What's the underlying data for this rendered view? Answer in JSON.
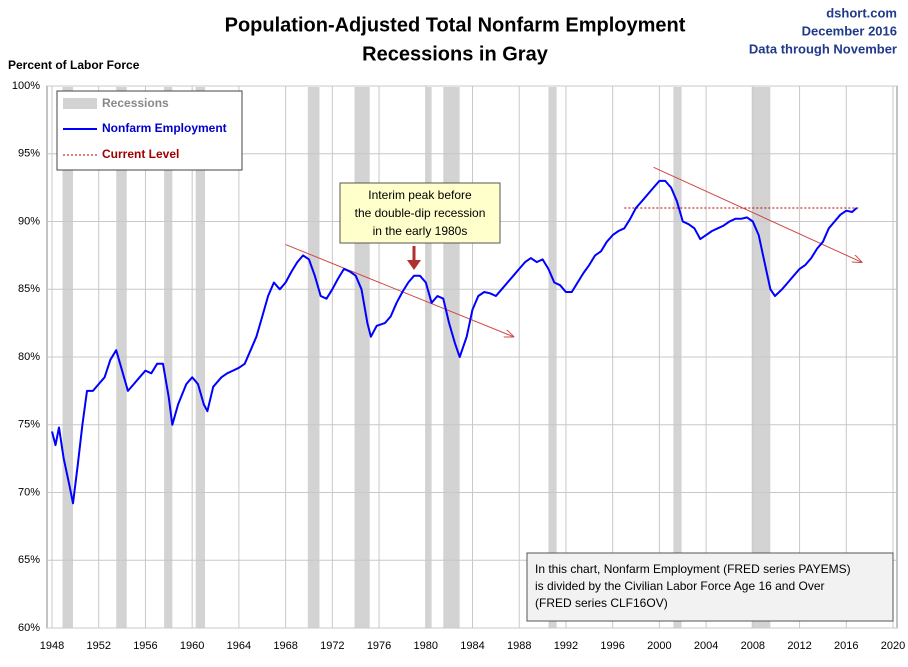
{
  "chart_data": {
    "type": "line",
    "title": [
      "Population-Adjusted Total Nonfarm Employment",
      "Recessions in Gray"
    ],
    "source": [
      "dshort.com",
      "December 2016",
      "Data through November"
    ],
    "y_label": "Percent of Labor Force",
    "xlim": [
      1948,
      2020
    ],
    "xticks": [
      1948,
      1952,
      1956,
      1960,
      1964,
      1968,
      1972,
      1976,
      1980,
      1984,
      1988,
      1992,
      1996,
      2000,
      2004,
      2008,
      2012,
      2016,
      2020
    ],
    "ylim": [
      60,
      100
    ],
    "yticks": [
      {
        "value": 60,
        "label": "60%"
      },
      {
        "value": 65,
        "label": "65%"
      },
      {
        "value": 70,
        "label": "70%"
      },
      {
        "value": 75,
        "label": "75%"
      },
      {
        "value": 80,
        "label": "80%"
      },
      {
        "value": 85,
        "label": "85%"
      },
      {
        "value": 90,
        "label": "90%"
      },
      {
        "value": 95,
        "label": "95%"
      },
      {
        "value": 100,
        "label": "100%"
      }
    ],
    "grid": true,
    "legend": "upper left",
    "series": [
      {
        "name": "Nonfarm Employment",
        "color": "#0000ff",
        "x": [
          1948.0,
          1948.3,
          1948.6,
          1949.0,
          1949.5,
          1949.8,
          1950.2,
          1950.6,
          1951.0,
          1951.5,
          1952.0,
          1952.5,
          1953.0,
          1953.5,
          1954.0,
          1954.5,
          1955.0,
          1955.5,
          1956.0,
          1956.5,
          1957.0,
          1957.5,
          1958.0,
          1958.3,
          1958.8,
          1959.5,
          1960.0,
          1960.5,
          1961.0,
          1961.3,
          1961.8,
          1962.5,
          1963.0,
          1963.5,
          1964.0,
          1964.5,
          1965.0,
          1965.5,
          1966.0,
          1966.5,
          1967.0,
          1967.5,
          1968.0,
          1968.5,
          1969.0,
          1969.5,
          1970.0,
          1970.5,
          1971.0,
          1971.5,
          1972.0,
          1972.5,
          1973.0,
          1973.5,
          1974.0,
          1974.5,
          1975.0,
          1975.3,
          1975.8,
          1976.5,
          1977.0,
          1977.5,
          1978.0,
          1978.5,
          1979.0,
          1979.5,
          1980.0,
          1980.5,
          1981.0,
          1981.5,
          1982.0,
          1982.5,
          1982.9,
          1983.5,
          1984.0,
          1984.5,
          1985.0,
          1985.5,
          1986.0,
          1986.5,
          1987.0,
          1987.5,
          1988.0,
          1988.5,
          1989.0,
          1989.5,
          1990.0,
          1990.5,
          1991.0,
          1991.5,
          1992.0,
          1992.5,
          1993.0,
          1993.5,
          1994.0,
          1994.5,
          1995.0,
          1995.5,
          1996.0,
          1996.5,
          1997.0,
          1997.5,
          1998.0,
          1998.5,
          1999.0,
          1999.5,
          2000.0,
          2000.5,
          2001.0,
          2001.5,
          2002.0,
          2002.5,
          2003.0,
          2003.5,
          2004.0,
          2004.5,
          2005.0,
          2005.5,
          2006.0,
          2006.5,
          2007.0,
          2007.5,
          2008.0,
          2008.5,
          2009.0,
          2009.5,
          2009.9,
          2010.5,
          2011.0,
          2011.5,
          2012.0,
          2012.5,
          2013.0,
          2013.5,
          2014.0,
          2014.5,
          2015.0,
          2015.5,
          2016.0,
          2016.5,
          2016.9
        ],
        "values": [
          74.5,
          73.5,
          74.8,
          72.5,
          70.5,
          69.2,
          72,
          75,
          77.5,
          77.5,
          78,
          78.5,
          79.8,
          80.5,
          79,
          77.5,
          78,
          78.5,
          79,
          78.8,
          79.5,
          79.5,
          77,
          75,
          76.5,
          78,
          78.5,
          78,
          76.5,
          76,
          77.8,
          78.5,
          78.8,
          79,
          79.2,
          79.5,
          80.5,
          81.5,
          83,
          84.5,
          85.5,
          85,
          85.5,
          86.3,
          87,
          87.5,
          87.2,
          86,
          84.5,
          84.3,
          85,
          85.8,
          86.5,
          86.3,
          86,
          85,
          82.5,
          81.5,
          82.3,
          82.5,
          83,
          84,
          84.8,
          85.5,
          86,
          86,
          85.5,
          84,
          84.5,
          84.3,
          82.5,
          81,
          80,
          81.5,
          83.5,
          84.5,
          84.8,
          84.7,
          84.5,
          85,
          85.5,
          86,
          86.5,
          87,
          87.3,
          87,
          87.2,
          86.5,
          85.5,
          85.3,
          84.8,
          84.8,
          85.5,
          86.2,
          86.8,
          87.5,
          87.8,
          88.5,
          89,
          89.3,
          89.5,
          90.2,
          91,
          91.5,
          92,
          92.5,
          93,
          93,
          92.5,
          91.5,
          90,
          89.8,
          89.5,
          88.7,
          89,
          89.3,
          89.5,
          89.7,
          90,
          90.2,
          90.2,
          90.3,
          90,
          89,
          87,
          85,
          84.5,
          85,
          85.5,
          86,
          86.5,
          86.8,
          87.3,
          88,
          88.5,
          89.5,
          90,
          90.5,
          90.8,
          90.7,
          91
        ]
      }
    ],
    "recessions": {
      "name": "Recessions",
      "color": "#d3d3d3",
      "spans": [
        [
          1948.9,
          1949.8
        ],
        [
          1953.5,
          1954.4
        ],
        [
          1957.6,
          1958.3
        ],
        [
          1960.3,
          1961.1
        ],
        [
          1969.9,
          1970.9
        ],
        [
          1973.9,
          1975.2
        ],
        [
          1980.0,
          1980.5
        ],
        [
          1981.5,
          1982.9
        ],
        [
          1990.5,
          1991.2
        ],
        [
          2001.2,
          2001.9
        ],
        [
          2007.9,
          2009.5
        ]
      ]
    },
    "current_level": {
      "name": "Current Level",
      "color": "#c00000",
      "value": 91,
      "x": [
        1997,
        2017.2
      ]
    },
    "trend_lines": {
      "color": "#d04848",
      "lines": [
        {
          "x": [
            1968,
            1987.5
          ],
          "y": [
            88.3,
            81.5
          ]
        },
        {
          "x": [
            1999.5,
            2017.3
          ],
          "y": [
            94,
            87
          ]
        }
      ]
    },
    "annotation": [
      "Interim peak before",
      "the double-dip recession",
      "in the early 1980s"
    ],
    "note": [
      "In this chart, Nonfarm Employment (FRED series PAYEMS)",
      "is divided by the Civilian Labor Force Age 16 and Over",
      "(FRED series CLF16OV)"
    ]
  }
}
